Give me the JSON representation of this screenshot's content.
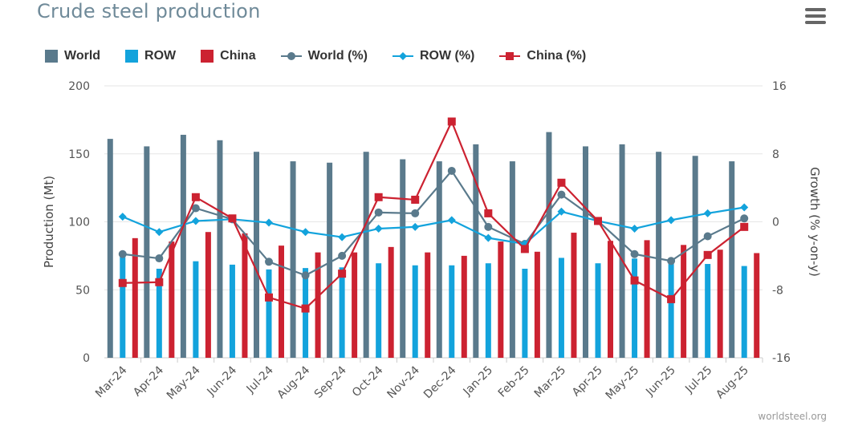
{
  "header": {
    "title": "Crude steel production",
    "menu_icon": "hamburger-menu-icon"
  },
  "credit": "worldsteel.org",
  "chart_data": {
    "type": "bar",
    "title": "Crude steel production",
    "categories": [
      "Mar-24",
      "Apr-24",
      "May-24",
      "Jun-24",
      "Jul-24",
      "Aug-24",
      "Sep-24",
      "Oct-24",
      "Nov-24",
      "Dec-24",
      "Jan-25",
      "Feb-25",
      "Mar-25",
      "Apr-25",
      "May-25",
      "Jun-25",
      "Jul-25",
      "Aug-25"
    ],
    "ylabel_left": "Production (Mt)",
    "ylabel_right": "Growth (% y-on-y)",
    "ylim_left": [
      0,
      200
    ],
    "yticks_left": [
      "200",
      "150",
      "100",
      "50",
      "0"
    ],
    "ylim_right": [
      -16,
      16
    ],
    "yticks_right": [
      "16",
      "8",
      "0",
      "-8",
      "-16"
    ],
    "grid": true,
    "legend_position": "top-left",
    "series": [
      {
        "name": "World",
        "type": "bar",
        "axis": "left",
        "color": "#5a7a8c",
        "values": [
          161,
          155.5,
          164,
          160,
          151.5,
          144.5,
          143.5,
          151.5,
          146,
          144.5,
          157,
          144.5,
          166,
          155.5,
          157,
          151.5,
          148.5,
          144.5
        ]
      },
      {
        "name": "ROW",
        "type": "bar",
        "axis": "left",
        "color": "#13a3dc",
        "values": [
          74,
          65.5,
          71,
          68.5,
          65,
          66,
          66.5,
          69.5,
          68,
          68,
          69.5,
          65.5,
          73.5,
          69.5,
          73,
          69,
          69,
          67.5
        ]
      },
      {
        "name": "China",
        "type": "bar",
        "axis": "left",
        "color": "#cc2231",
        "values": [
          88,
          85.5,
          92.5,
          91.5,
          82.5,
          77.5,
          77.5,
          81.5,
          77.5,
          75,
          85.5,
          78,
          92,
          86,
          86.5,
          83,
          79.5,
          77
        ]
      },
      {
        "name": "World (%)",
        "type": "line",
        "axis": "right",
        "color": "#5a7a8c",
        "marker": "circle",
        "values": [
          -3.8,
          -4.3,
          1.6,
          0.3,
          -4.7,
          -6.3,
          -4.0,
          1.1,
          1.0,
          6.0,
          -0.6,
          -2.6,
          3.2,
          0.1,
          -3.8,
          -4.6,
          -1.7,
          0.4
        ]
      },
      {
        "name": "ROW (%)",
        "type": "line",
        "axis": "right",
        "color": "#13a3dc",
        "marker": "diamond",
        "values": [
          0.6,
          -1.2,
          0.1,
          0.3,
          -0.1,
          -1.2,
          -1.8,
          -0.8,
          -0.6,
          0.2,
          -1.9,
          -2.6,
          1.2,
          0.1,
          -0.8,
          0.2,
          1.0,
          1.7
        ]
      },
      {
        "name": "China (%)",
        "type": "line",
        "axis": "right",
        "color": "#cc2231",
        "marker": "square",
        "values": [
          -7.2,
          -7.1,
          2.9,
          0.4,
          -8.9,
          -10.2,
          -6.1,
          2.9,
          2.6,
          11.8,
          1.0,
          -3.2,
          4.6,
          0.1,
          -6.9,
          -9.1,
          -3.9,
          -0.6
        ]
      }
    ]
  }
}
